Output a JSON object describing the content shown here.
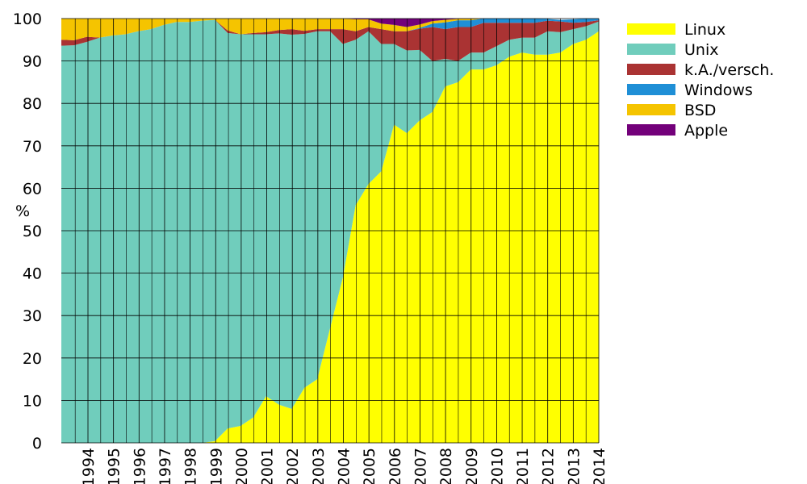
{
  "chart_data": {
    "type": "area",
    "stacked": true,
    "ylabel": "%",
    "ylim": [
      0,
      100
    ],
    "yticks": [
      0,
      10,
      20,
      30,
      40,
      50,
      60,
      70,
      80,
      90,
      100
    ],
    "xticks": [
      "1994",
      "1995",
      "1996",
      "1997",
      "1998",
      "1999",
      "2000",
      "2001",
      "2002",
      "2003",
      "2004",
      "2005",
      "2006",
      "2007",
      "2008",
      "2009",
      "2010",
      "2011",
      "2012",
      "2013",
      "2014"
    ],
    "grid": true,
    "legend_position": "right",
    "x": [
      "Jun 1993",
      "Nov 1993",
      "Jun 1994",
      "Nov 1994",
      "Jun 1995",
      "Nov 1995",
      "Jun 1996",
      "Nov 1996",
      "Jun 1997",
      "Nov 1997",
      "Jun 1998",
      "Nov 1998",
      "Jun 1999",
      "Nov 1999",
      "Jun 2000",
      "Nov 2000",
      "Jun 2001",
      "Nov 2001",
      "Jun 2002",
      "Nov 2002",
      "Jun 2003",
      "Nov 2003",
      "Jun 2004",
      "Nov 2004",
      "Jun 2005",
      "Nov 2005",
      "Jun 2006",
      "Nov 2006",
      "Jun 2007",
      "Nov 2007",
      "Jun 2008",
      "Nov 2008",
      "Jun 2009",
      "Nov 2009",
      "Jun 2010",
      "Nov 2010",
      "Jun 2011",
      "Nov 2011",
      "Jun 2012",
      "Nov 2012",
      "Jun 2013",
      "Nov 2013",
      "Jun 2014"
    ],
    "series": [
      {
        "name": "Linux",
        "color": "#ffff00",
        "values": [
          0,
          0,
          0,
          0,
          0,
          0,
          0,
          0,
          0,
          0,
          0,
          0,
          0.4,
          3.4,
          4,
          6,
          11,
          9,
          8,
          13,
          15,
          27,
          39,
          56,
          61,
          64,
          75,
          73,
          76,
          78,
          84,
          85,
          88,
          88,
          89,
          91,
          92,
          91.5,
          91.5,
          92,
          94,
          95,
          97
        ]
      },
      {
        "name": "Unix",
        "color": "#70cdbc",
        "values": [
          93.6,
          93.7,
          94.5,
          95.5,
          96,
          96.3,
          97,
          97.5,
          98.5,
          99.2,
          99.2,
          99.5,
          99.3,
          93.2,
          92.3,
          90.3,
          85.3,
          87.5,
          88.2,
          83.4,
          82,
          70,
          55,
          39,
          36,
          30,
          19,
          19.5,
          16.6,
          12,
          6.5,
          5,
          4,
          4,
          4.5,
          4,
          3.5,
          4,
          5.5,
          4.8,
          3.5,
          3.2,
          2.3
        ]
      },
      {
        "name": "k.A./versch.",
        "color": "#aa3333",
        "values": [
          1.4,
          1.2,
          1.2,
          0,
          0,
          0,
          0,
          0,
          0,
          0,
          0,
          0,
          0,
          0.6,
          0,
          0.3,
          0.5,
          0.8,
          1.3,
          0.7,
          0.5,
          0.5,
          3.5,
          2,
          1,
          3.5,
          3,
          4.5,
          5,
          8,
          7,
          8,
          6,
          7,
          5.5,
          4,
          3.5,
          3.5,
          2.5,
          2.5,
          1.5,
          1,
          0.3
        ]
      },
      {
        "name": "Windows",
        "color": "#1f8fd6",
        "values": [
          0,
          0,
          0,
          0,
          0,
          0,
          0,
          0,
          0,
          0,
          0,
          0,
          0,
          0,
          0,
          0,
          0,
          0,
          0,
          0,
          0,
          0,
          0,
          0,
          0,
          0,
          0,
          0,
          0.2,
          0.8,
          1.6,
          1.6,
          1.6,
          1.4,
          1,
          1,
          1,
          1,
          0.4,
          0.4,
          0.8,
          0.8,
          0.4
        ]
      },
      {
        "name": "BSD",
        "color": "#f5c400",
        "values": [
          5,
          5.1,
          4.3,
          4.5,
          4,
          3.7,
          3,
          2.5,
          1.5,
          0.8,
          0.8,
          0.5,
          0.3,
          2.8,
          3.7,
          3.4,
          3.2,
          2.7,
          2.5,
          2.9,
          2.5,
          2.5,
          2.5,
          2.8,
          1.8,
          1.3,
          1.5,
          1,
          0.8,
          0.6,
          0.6,
          0.3,
          0.3,
          0.2,
          0,
          0,
          0,
          0,
          0,
          0,
          0,
          0,
          0
        ]
      },
      {
        "name": "Apple",
        "color": "#73007a",
        "values": [
          0,
          0,
          0,
          0,
          0,
          0,
          0,
          0,
          0,
          0,
          0,
          0,
          0,
          0,
          0,
          0,
          0,
          0,
          0,
          0,
          0,
          0,
          0,
          0.2,
          0.2,
          1.2,
          1.5,
          2,
          1.4,
          0.6,
          0.3,
          0.1,
          0.1,
          0,
          0,
          0,
          0,
          0,
          0,
          0,
          0,
          0,
          0
        ]
      }
    ]
  }
}
